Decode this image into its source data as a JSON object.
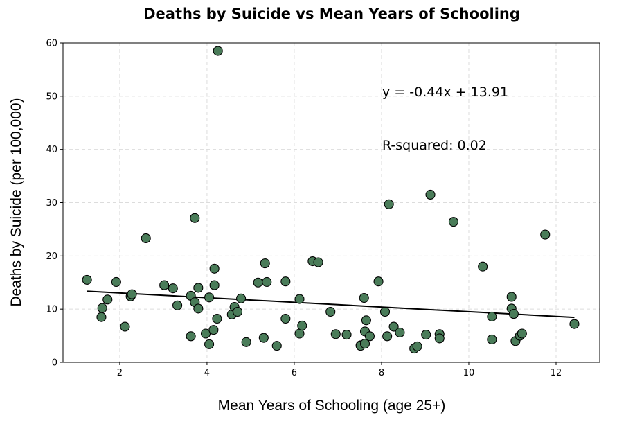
{
  "chart_data": {
    "type": "scatter",
    "title": "Deaths by Suicide vs Mean Years of Schooling",
    "xlabel": "Mean Years of Schooling (age 25+)",
    "ylabel": "Deaths by Suicide (per 100,000)",
    "xlim": [
      0.7,
      13.0
    ],
    "ylim": [
      0,
      60
    ],
    "xticks": [
      2,
      4,
      6,
      8,
      10,
      12
    ],
    "yticks": [
      0,
      10,
      20,
      30,
      40,
      50,
      60
    ],
    "grid": true,
    "marker_color": "#4a7c59",
    "marker_edge_color": "#000000",
    "points": [
      [
        1.25,
        15.5
      ],
      [
        1.6,
        10.2
      ],
      [
        1.58,
        8.5
      ],
      [
        1.72,
        11.8
      ],
      [
        1.92,
        15.1
      ],
      [
        2.12,
        6.7
      ],
      [
        2.25,
        12.4
      ],
      [
        2.28,
        12.8
      ],
      [
        2.6,
        23.3
      ],
      [
        3.02,
        14.5
      ],
      [
        3.22,
        13.9
      ],
      [
        3.32,
        10.7
      ],
      [
        3.63,
        12.5
      ],
      [
        3.63,
        4.9
      ],
      [
        3.72,
        27.1
      ],
      [
        3.72,
        11.3
      ],
      [
        3.8,
        14.0
      ],
      [
        3.8,
        10.1
      ],
      [
        3.97,
        5.4
      ],
      [
        4.05,
        12.2
      ],
      [
        4.05,
        3.4
      ],
      [
        4.15,
        6.1
      ],
      [
        4.17,
        14.5
      ],
      [
        4.17,
        17.6
      ],
      [
        4.23,
        8.2
      ],
      [
        4.25,
        58.5
      ],
      [
        4.57,
        9.0
      ],
      [
        4.63,
        10.4
      ],
      [
        4.7,
        9.5
      ],
      [
        4.78,
        12.0
      ],
      [
        4.9,
        3.8
      ],
      [
        5.17,
        15.0
      ],
      [
        5.3,
        4.6
      ],
      [
        5.33,
        18.6
      ],
      [
        5.37,
        15.1
      ],
      [
        5.6,
        3.1
      ],
      [
        5.8,
        15.2
      ],
      [
        5.8,
        8.2
      ],
      [
        6.12,
        11.9
      ],
      [
        6.12,
        5.4
      ],
      [
        6.18,
        6.9
      ],
      [
        6.42,
        19.0
      ],
      [
        6.55,
        18.8
      ],
      [
        6.83,
        9.5
      ],
      [
        6.95,
        5.3
      ],
      [
        7.2,
        5.2
      ],
      [
        7.52,
        3.2
      ],
      [
        7.52,
        3.1
      ],
      [
        7.6,
        12.1
      ],
      [
        7.62,
        5.8
      ],
      [
        7.62,
        3.5
      ],
      [
        7.65,
        7.9
      ],
      [
        7.73,
        4.9
      ],
      [
        7.93,
        15.2
      ],
      [
        8.08,
        9.5
      ],
      [
        8.13,
        4.9
      ],
      [
        8.17,
        29.7
      ],
      [
        8.28,
        6.7
      ],
      [
        8.42,
        5.6
      ],
      [
        8.75,
        2.6
      ],
      [
        8.82,
        3.0
      ],
      [
        9.02,
        5.2
      ],
      [
        9.12,
        31.5
      ],
      [
        9.33,
        5.3
      ],
      [
        9.33,
        4.5
      ],
      [
        9.65,
        26.4
      ],
      [
        10.32,
        18.0
      ],
      [
        10.53,
        8.6
      ],
      [
        10.53,
        4.3
      ],
      [
        10.98,
        12.3
      ],
      [
        10.98,
        10.1
      ],
      [
        11.03,
        9.1
      ],
      [
        11.07,
        4.0
      ],
      [
        11.17,
        5.0
      ],
      [
        11.22,
        5.4
      ],
      [
        11.75,
        24.0
      ],
      [
        12.42,
        7.2
      ]
    ],
    "regression": {
      "slope": -0.44,
      "intercept": 13.91,
      "x_range": [
        1.25,
        12.42
      ]
    },
    "annotations": [
      "y = -0.44x + 13.91",
      "R-squared: 0.02"
    ]
  }
}
